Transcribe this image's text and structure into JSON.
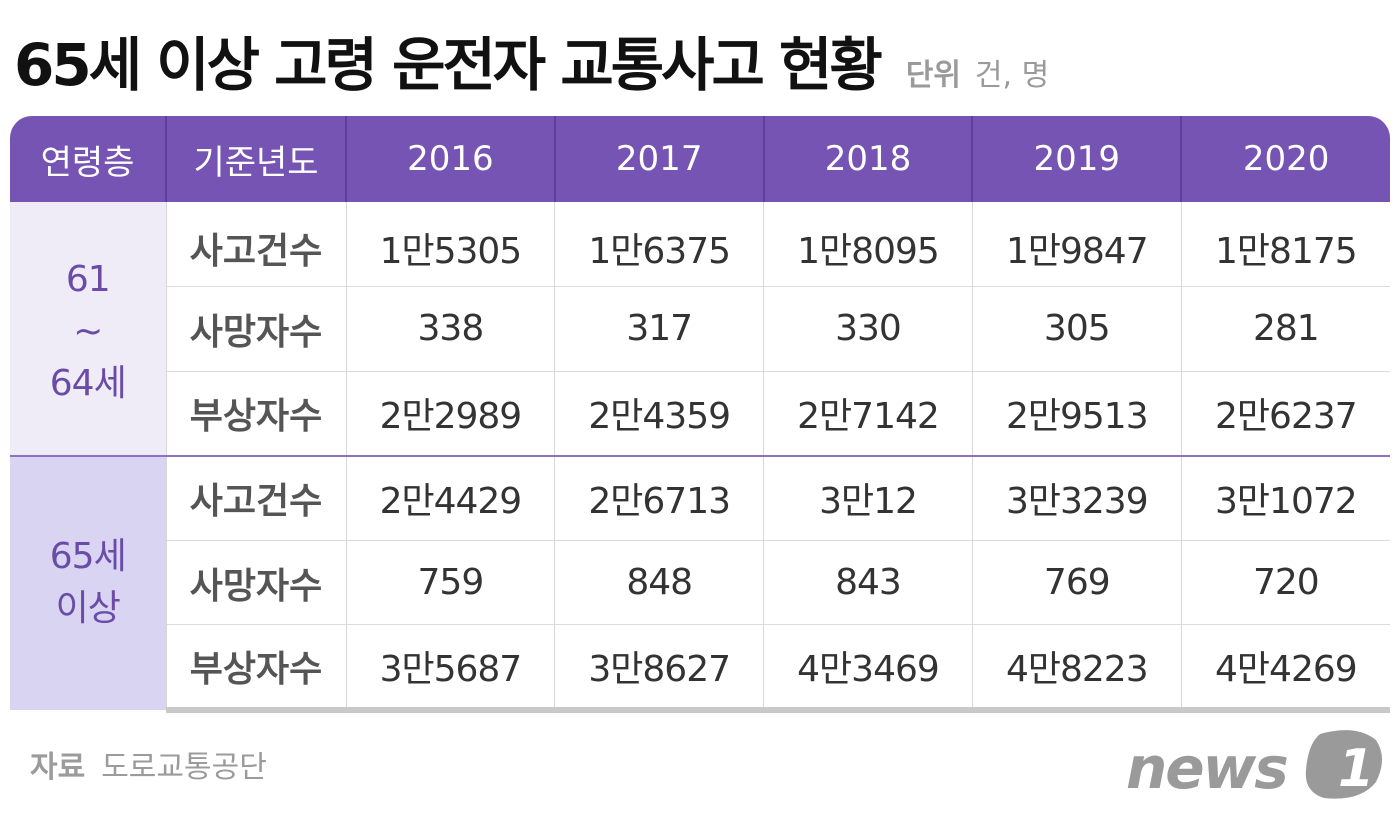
{
  "title": "65세 이상 고령 운전자 교통사고 현황",
  "unit": {
    "label": "단위",
    "value": "건, 명"
  },
  "source": {
    "label": "자료",
    "value": "도로교통공단"
  },
  "logo": {
    "text": "news",
    "mark": "1"
  },
  "chart_data": {
    "type": "table",
    "title": "65세 이상 고령 운전자 교통사고 현황",
    "headers": [
      "연령층",
      "기준년도",
      "2016",
      "2017",
      "2018",
      "2019",
      "2020"
    ],
    "groups": [
      {
        "age_lines": [
          "61",
          "~",
          "64세"
        ],
        "rows": [
          {
            "metric": "사고건수",
            "values": [
              "1만5305",
              "1만6375",
              "1만8095",
              "1만9847",
              "1만8175"
            ]
          },
          {
            "metric": "사망자수",
            "values": [
              "338",
              "317",
              "330",
              "305",
              "281"
            ]
          },
          {
            "metric": "부상자수",
            "values": [
              "2만2989",
              "2만4359",
              "2만7142",
              "2만9513",
              "2만6237"
            ]
          }
        ]
      },
      {
        "age_lines": [
          "65세",
          "이상"
        ],
        "rows": [
          {
            "metric": "사고건수",
            "values": [
              "2만4429",
              "2만6713",
              "3만12",
              "3만3239",
              "3만1072"
            ]
          },
          {
            "metric": "사망자수",
            "values": [
              "759",
              "848",
              "843",
              "769",
              "720"
            ]
          },
          {
            "metric": "부상자수",
            "values": [
              "3만5687",
              "3만8627",
              "4만3469",
              "4만8223",
              "4만4269"
            ]
          }
        ]
      }
    ]
  }
}
